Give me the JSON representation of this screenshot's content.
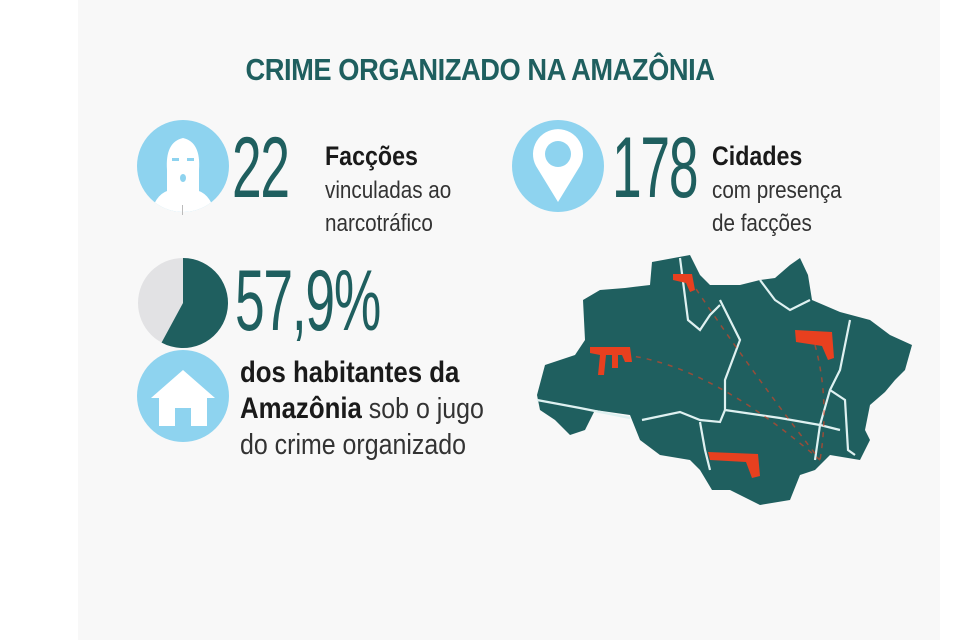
{
  "title": "CRIME ORGANIZADO NA AMAZÔNIA",
  "stats": {
    "factions": {
      "value": "22",
      "label": "Facções",
      "line1": "vinculadas ao",
      "line2": "narcotráfico",
      "icon": "masked-face-icon"
    },
    "cities": {
      "value": "178",
      "label": "Cidades",
      "line1": "com presença",
      "line2": "de facções",
      "icon": "location-pin-icon"
    },
    "population": {
      "value": "57,9%",
      "percent": 57.9,
      "bold1": "dos habitantes da",
      "bold2": "Amazônia",
      "rest2": "sob o jugo",
      "line3": "do crime organizado",
      "icon": "house-icon"
    }
  },
  "colors": {
    "teal": "#1f5f5f",
    "light_blue": "#8ed3ef",
    "gun_red": "#e8401f",
    "pie_rest": "#e2e2e4"
  },
  "map": {
    "region": "Amazônia Legal",
    "markers": [
      "machine-gun-icon",
      "pistol-icon",
      "pistol-icon",
      "pistol-icon"
    ]
  }
}
